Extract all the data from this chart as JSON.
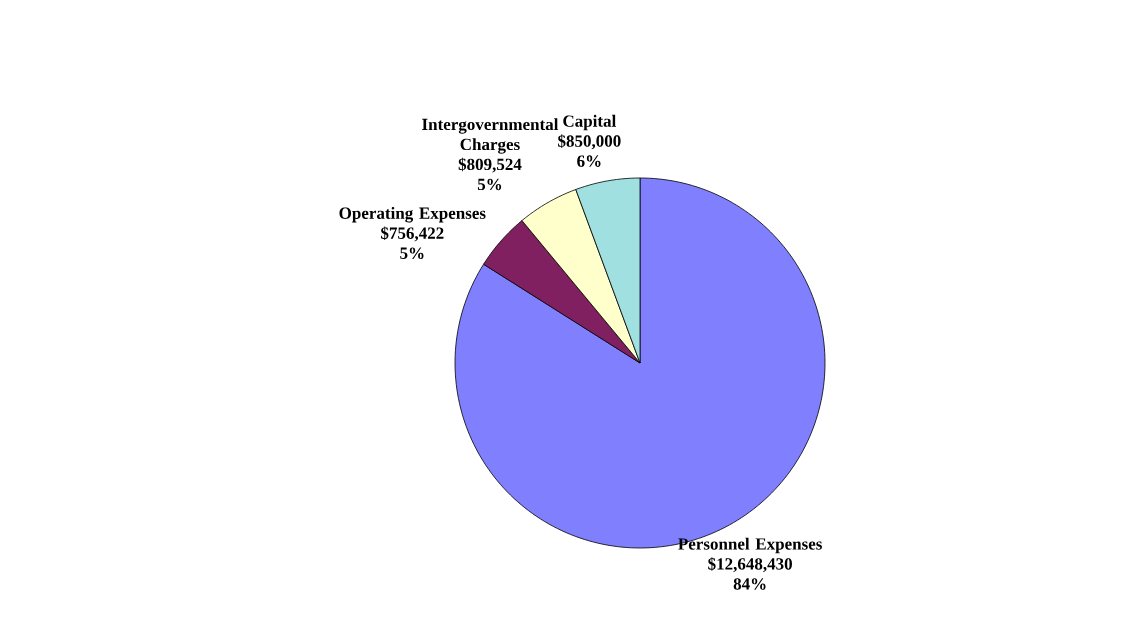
{
  "chart_data": {
    "type": "pie",
    "categories": [
      "Personnel Expenses",
      "Operating Expenses",
      "Intergovernmental Charges",
      "Capital"
    ],
    "values": [
      12648430,
      756422,
      809524,
      850000
    ],
    "colors": [
      "#8080ff",
      "#802060",
      "#ffffcc",
      "#a0e0e0"
    ],
    "value_labels": [
      "$12,648,430",
      "$756,422",
      "$809,524",
      "$850,000"
    ],
    "annotations": [
      {
        "text": "84%",
        "x": "Personnel Expenses"
      },
      {
        "text": "5%",
        "x": "Operating Expenses"
      },
      {
        "text": "5%",
        "x": "Intergovernmental Charges"
      },
      {
        "text": "6%",
        "x": "Capital"
      }
    ]
  }
}
